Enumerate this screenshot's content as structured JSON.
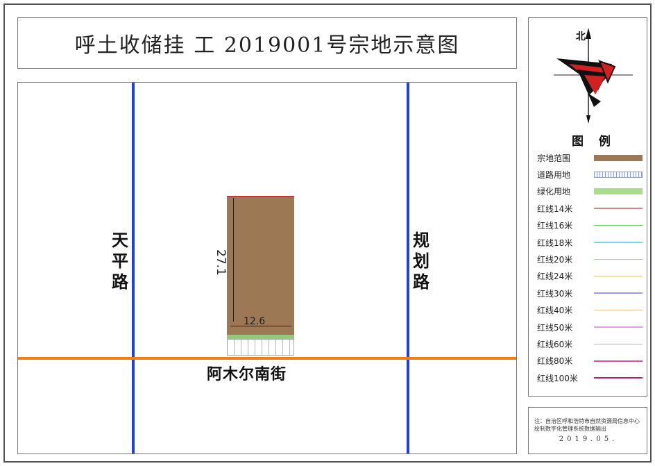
{
  "title": "呼土收储挂 工 2019001号宗地示意图",
  "roads": {
    "west": "天平路",
    "east": "规划路",
    "south": "阿木尔南街"
  },
  "parcel": {
    "dim_height": "27.1",
    "dim_width": "12.6"
  },
  "compass": {
    "north_label": "北"
  },
  "legend": {
    "title": "图 例",
    "items": [
      {
        "label": "宗地范围",
        "color": "#9c7855",
        "style": "fill"
      },
      {
        "label": "道路用地",
        "color": "#8a9be0",
        "style": "hatch"
      },
      {
        "label": "绿化用地",
        "color": "#a8dd8c",
        "style": "fill"
      },
      {
        "label": "红线14米",
        "color": "#c98a8a",
        "style": "line"
      },
      {
        "label": "红线16米",
        "color": "#6fcf6f",
        "style": "line"
      },
      {
        "label": "红线18米",
        "color": "#6fd9e6",
        "style": "line"
      },
      {
        "label": "红线20米",
        "color": "#e8c23a",
        "style": "line"
      },
      {
        "label": "红线24米",
        "color": "#eee6a8",
        "style": "line"
      },
      {
        "label": "红线30米",
        "color": "#9b9be8",
        "style": "line"
      },
      {
        "label": "红线40米",
        "color": "#f2c79a",
        "style": "line"
      },
      {
        "label": "红线50米",
        "color": "#e89be8",
        "style": "line"
      },
      {
        "label": "红线60米",
        "color": "#c9a0d9",
        "style": "line"
      },
      {
        "label": "红线80米",
        "color": "#d94fa8",
        "style": "line"
      },
      {
        "label": "红线100米",
        "color": "#b01f6e",
        "style": "line"
      }
    ]
  },
  "note": {
    "text": "注：自治区呼和浩特市自然资源局信息中心 绘制数字化管理系统数据输出",
    "date": "2019.05."
  }
}
